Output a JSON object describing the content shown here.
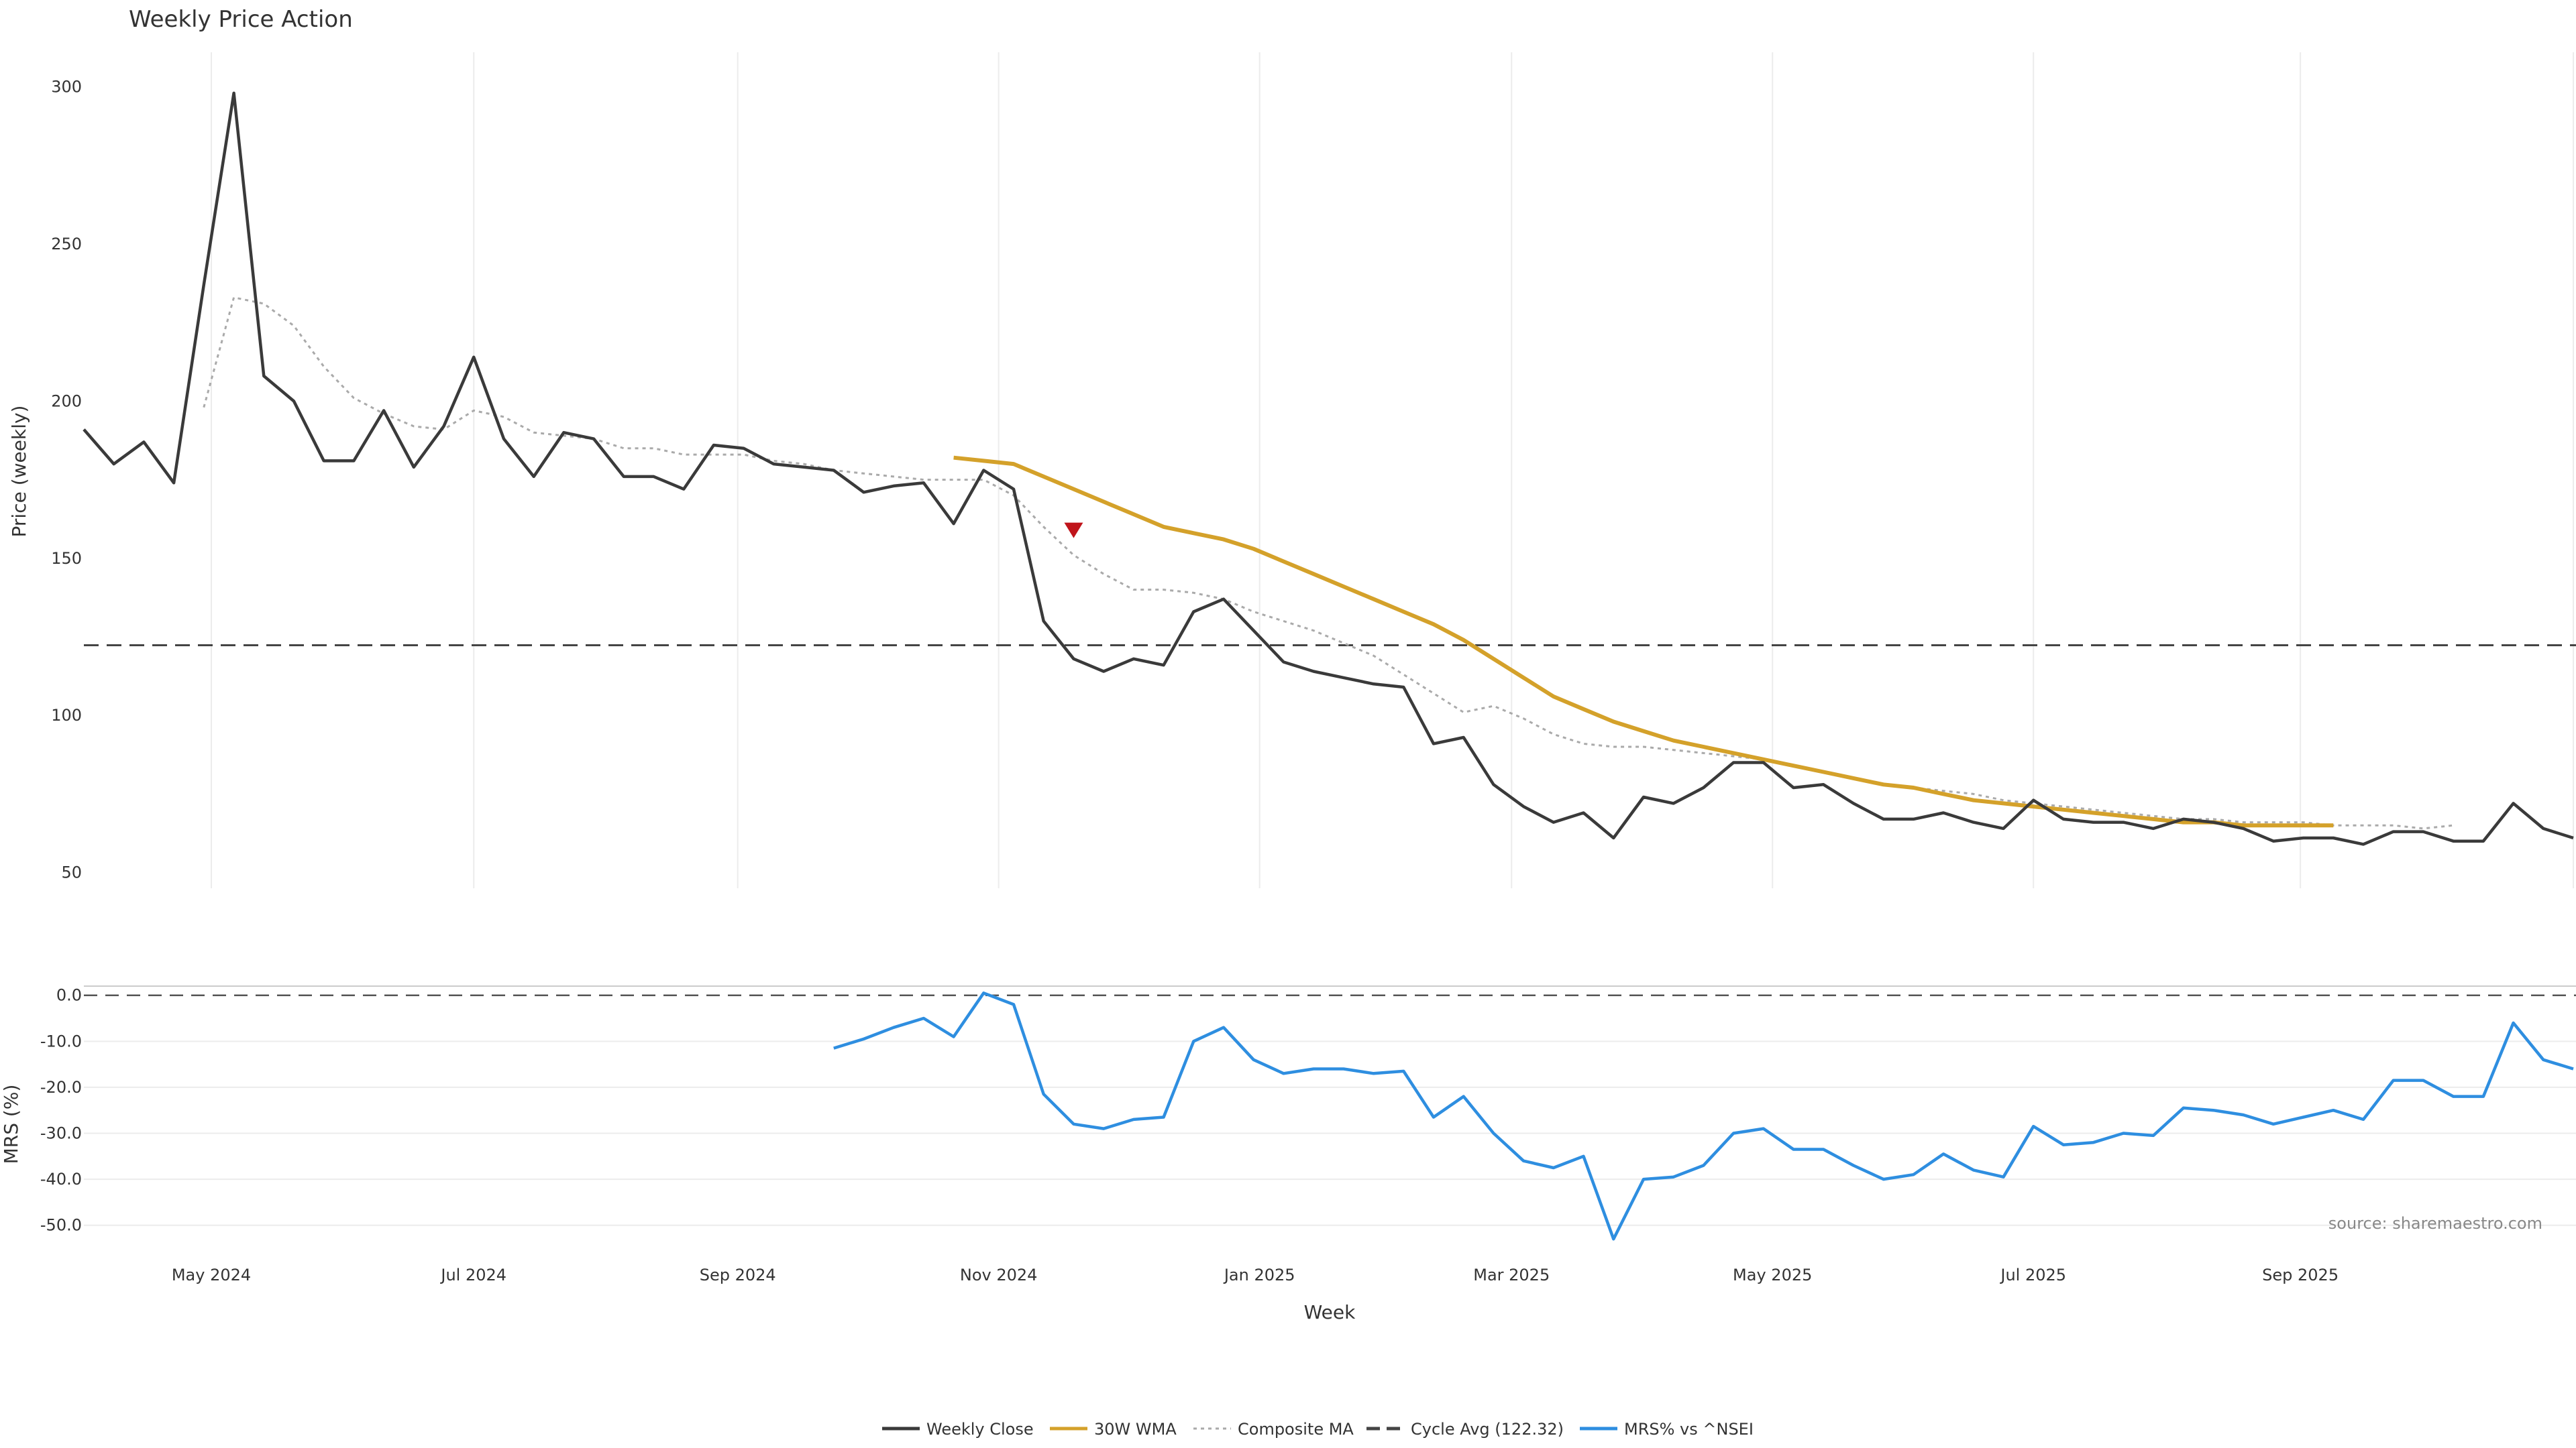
{
  "chart_data": {
    "type": "line",
    "title": "Weekly Price Action",
    "x_axis": {
      "label": "Week",
      "ticks": [
        {
          "week": 4.25,
          "label": "May 2024"
        },
        {
          "week": 13,
          "label": "Jul 2024"
        },
        {
          "week": 21.8,
          "label": "Sep 2024"
        },
        {
          "week": 30.5,
          "label": "Nov 2024"
        },
        {
          "week": 39.2,
          "label": "Jan 2025"
        },
        {
          "week": 47.6,
          "label": "Mar 2025"
        },
        {
          "week": 56.3,
          "label": "May 2025"
        },
        {
          "week": 65,
          "label": "Jul 2025"
        },
        {
          "week": 73.9,
          "label": "Sep 2025"
        }
      ],
      "range": [
        0,
        83
      ]
    },
    "price_panel": {
      "ylabel": "Price (weekly)",
      "ylim": [
        45,
        311
      ],
      "yticks": [
        50,
        100,
        150,
        200,
        250,
        300
      ],
      "series": [
        {
          "name": "Weekly Close",
          "color": "#3a3a3a",
          "style": "solid",
          "start_week": 0,
          "values": [
            191,
            180,
            187,
            174,
            237,
            298,
            208,
            200,
            181,
            181,
            197,
            179,
            192,
            214,
            188,
            176,
            190,
            188,
            176,
            176,
            172,
            186,
            185,
            180,
            179,
            178,
            171,
            173,
            174,
            161,
            178,
            172,
            130,
            118,
            114,
            118,
            116,
            133,
            137,
            127,
            117,
            114,
            112,
            110,
            109,
            91,
            93,
            78,
            71,
            66,
            69,
            61,
            74,
            72,
            77,
            85,
            85,
            77,
            78,
            72,
            67,
            67,
            69,
            66,
            64,
            73,
            67,
            66,
            66,
            64,
            67,
            66,
            64,
            60,
            61,
            61,
            59,
            63,
            63,
            60,
            60,
            72,
            64,
            61
          ]
        },
        {
          "name": "30W WMA",
          "color": "#d4a12a",
          "style": "solid",
          "start_week": 29,
          "values": [
            182,
            181,
            180,
            176,
            172,
            168,
            164,
            160,
            158,
            156,
            153,
            149,
            145,
            141,
            137,
            133,
            129,
            124,
            118,
            112,
            106,
            102,
            98,
            95,
            92,
            90,
            88,
            86,
            84,
            82,
            80,
            78,
            77,
            75,
            73,
            72,
            71,
            70,
            69,
            68,
            67,
            66,
            66,
            65,
            65,
            65,
            65
          ]
        },
        {
          "name": "Composite MA",
          "color": "#aaaaaa",
          "style": "dotted",
          "start_week": 4,
          "values": [
            198,
            233,
            231,
            224,
            211,
            201,
            196,
            192,
            191,
            197,
            195,
            190,
            189,
            188,
            185,
            185,
            183,
            183,
            183,
            181,
            180,
            178,
            177,
            176,
            175,
            175,
            175,
            170,
            160,
            151,
            145,
            140,
            140,
            139,
            137,
            133,
            130,
            127,
            123,
            119,
            113,
            107,
            101,
            103,
            99,
            94,
            91,
            90,
            90,
            89,
            88,
            87,
            86,
            84,
            82,
            80,
            78,
            77,
            76,
            75,
            73,
            72,
            71,
            70,
            69,
            68,
            67,
            67,
            66,
            66,
            66,
            65,
            65,
            65,
            64,
            65
          ]
        }
      ],
      "reference_line": {
        "name": "Cycle Avg (122.32)",
        "value": 122.32,
        "color": "#444444",
        "style": "dashed"
      },
      "markers": [
        {
          "name": "sell-signal",
          "week": 33,
          "value": 159,
          "color": "#c0141b",
          "shape": "triangle-down"
        }
      ]
    },
    "mrs_panel": {
      "ylabel": "MRS (%)",
      "ylim": [
        -55,
        2
      ],
      "yticks": [
        0.0,
        -10.0,
        -20.0,
        -30.0,
        -40.0,
        -50.0
      ],
      "ytick_labels": [
        "0.0",
        "-10.0",
        "-20.0",
        "-30.0",
        "-40.0",
        "-50.0"
      ],
      "series": [
        {
          "name": "MRS% vs ^NSEI",
          "color": "#2e8ee0",
          "style": "solid",
          "start_week": 25,
          "values": [
            -11.5,
            -9.5,
            -7,
            -5,
            -9,
            0.5,
            -2,
            -21.5,
            -28,
            -29,
            -27,
            -26.5,
            -10,
            -7,
            -14,
            -17,
            -16,
            -16,
            -17,
            -16.5,
            -26.5,
            -22,
            -30,
            -36,
            -37.5,
            -35,
            -53,
            -40,
            -39.5,
            -37,
            -30,
            -29,
            -33.5,
            -33.5,
            -37,
            -40,
            -39,
            -34.5,
            -38,
            -39.5,
            -28.5,
            -32.5,
            -32,
            -30,
            -30.5,
            -24.5,
            -25,
            -26,
            -28,
            -26.5,
            -25,
            -27,
            -18.5,
            -18.5,
            -22,
            -22,
            -6,
            -14,
            -16
          ]
        }
      ],
      "reference_line": {
        "value": 0,
        "color": "#555555",
        "style": "dashed"
      }
    },
    "source_note": "source: sharemaestro.com",
    "legend": {
      "position": "bottom-center",
      "entries": [
        {
          "label": "Weekly Close",
          "color": "#3a3a3a",
          "style": "solid"
        },
        {
          "label": "30W WMA",
          "color": "#d4a12a",
          "style": "solid"
        },
        {
          "label": "Composite MA",
          "color": "#aaaaaa",
          "style": "dotted"
        },
        {
          "label": "Cycle Avg (122.32)",
          "color": "#444444",
          "style": "dashed"
        },
        {
          "label": "MRS% vs ^NSEI",
          "color": "#2e8ee0",
          "style": "solid"
        }
      ]
    }
  }
}
